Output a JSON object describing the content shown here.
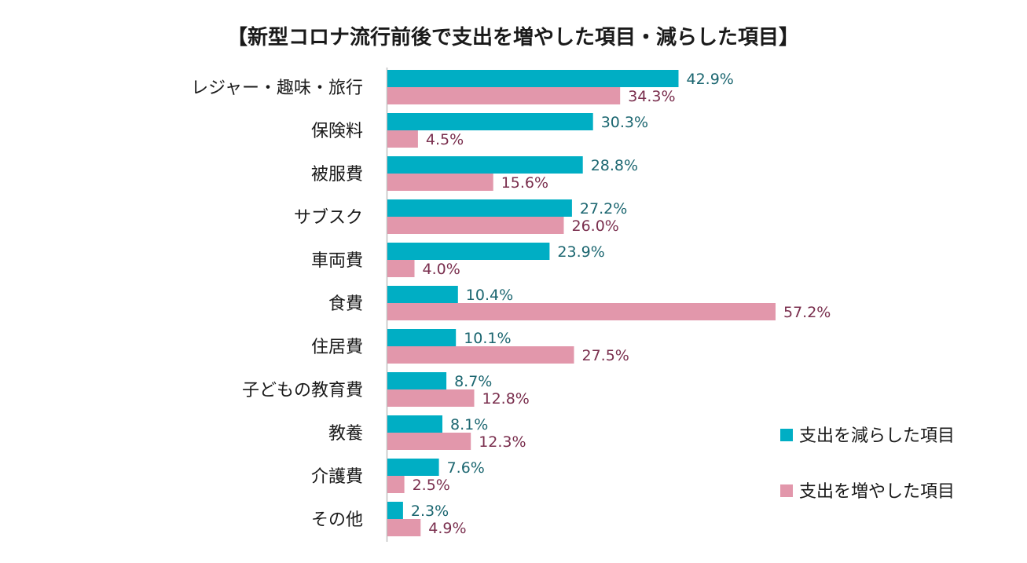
{
  "chart_data": {
    "type": "bar",
    "orientation": "horizontal",
    "title": "【新型コロナ流行前後で支出を増やした項目・減らした項目】",
    "categories": [
      "レジャー・趣味・旅行",
      "保険料",
      "被服費",
      "サブスク",
      "車両費",
      "食費",
      "住居費",
      "子どもの教育費",
      "教養",
      "介護費",
      "その他"
    ],
    "series": [
      {
        "name": "支出を減らした項目",
        "color": "#00aec4",
        "values": [
          42.9,
          30.3,
          28.8,
          27.2,
          23.9,
          10.4,
          10.1,
          8.7,
          8.1,
          7.6,
          2.3
        ],
        "labels": [
          "42.9%",
          "30.3%",
          "28.8%",
          "27.2%",
          "23.9%",
          "10.4%",
          "10.1%",
          "8.7%",
          "8.1%",
          "7.6%",
          "2.3%"
        ]
      },
      {
        "name": "支出を増やした項目",
        "color": "#e297ab",
        "values": [
          34.3,
          4.5,
          15.6,
          26.0,
          4.0,
          57.2,
          27.5,
          12.8,
          12.3,
          2.5,
          4.9
        ],
        "labels": [
          "34.3%",
          "4.5%",
          "15.6%",
          "26.0%",
          "4.0%",
          "57.2%",
          "27.5%",
          "12.8%",
          "12.3%",
          "2.5%",
          "4.9%"
        ]
      }
    ],
    "unit": "%",
    "xlim": [
      0,
      57.2
    ],
    "grid": false,
    "legend": "right"
  }
}
